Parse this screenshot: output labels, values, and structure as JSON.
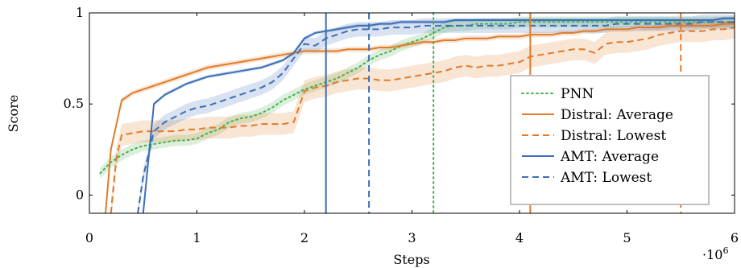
{
  "chart_data": {
    "type": "line",
    "title": "",
    "xlabel": "Steps",
    "ylabel": "Score",
    "x_exponent_label": "·10",
    "x_exponent_power": "6",
    "xlim": [
      0,
      6
    ],
    "ylim": [
      -0.1,
      1.0
    ],
    "xticks": [
      0,
      1,
      2,
      3,
      4,
      5,
      6
    ],
    "xtick_labels": [
      "0",
      "1",
      "2",
      "3",
      "4",
      "5",
      "6"
    ],
    "yticks": [
      0,
      0.5,
      1
    ],
    "ytick_labels": [
      "0",
      "0.5",
      "1"
    ],
    "grid": false,
    "legend_position": "bottom-right",
    "colors": {
      "orange": "#e07b2a",
      "blue": "#3d6fb6",
      "green": "#4caf50"
    },
    "series": [
      {
        "name": "PNN",
        "color": "#4caf50",
        "dash": "dotted",
        "x": [
          0.1,
          0.2,
          0.3,
          0.4,
          0.5,
          0.6,
          0.7,
          0.8,
          0.9,
          1.0,
          1.1,
          1.2,
          1.3,
          1.4,
          1.5,
          1.6,
          1.7,
          1.8,
          1.9,
          2.0,
          2.1,
          2.2,
          2.3,
          2.4,
          2.5,
          2.6,
          2.7,
          2.8,
          2.9,
          3.0,
          3.1,
          3.2,
          3.3,
          3.4,
          3.5,
          3.6,
          3.7,
          3.8,
          3.9,
          4.0,
          4.1,
          4.2,
          4.3,
          4.4,
          4.5,
          4.6,
          4.7,
          4.8,
          4.9,
          5.0,
          5.1,
          5.2,
          5.3,
          5.4,
          5.5,
          5.6,
          5.7,
          5.8,
          5.9,
          6.0
        ],
        "y": [
          0.12,
          0.18,
          0.22,
          0.25,
          0.27,
          0.28,
          0.29,
          0.3,
          0.3,
          0.31,
          0.34,
          0.36,
          0.4,
          0.42,
          0.43,
          0.45,
          0.48,
          0.52,
          0.55,
          0.58,
          0.6,
          0.62,
          0.64,
          0.67,
          0.7,
          0.74,
          0.77,
          0.79,
          0.82,
          0.84,
          0.86,
          0.89,
          0.92,
          0.93,
          0.93,
          0.94,
          0.94,
          0.94,
          0.94,
          0.95,
          0.95,
          0.95,
          0.95,
          0.95,
          0.95,
          0.95,
          0.95,
          0.95,
          0.95,
          0.95,
          0.95,
          0.95,
          0.95,
          0.95,
          0.95,
          0.95,
          0.95,
          0.95,
          0.95,
          0.95
        ],
        "band": 0.03
      },
      {
        "name": "Distral: Average",
        "color": "#e07b2a",
        "dash": "solid",
        "x": [
          0.15,
          0.2,
          0.3,
          0.4,
          0.5,
          0.6,
          0.7,
          0.8,
          0.9,
          1.0,
          1.1,
          1.2,
          1.3,
          1.4,
          1.5,
          1.6,
          1.7,
          1.8,
          1.9,
          2.0,
          2.1,
          2.2,
          2.3,
          2.4,
          2.5,
          2.6,
          2.7,
          2.8,
          2.9,
          3.0,
          3.1,
          3.2,
          3.3,
          3.4,
          3.5,
          3.6,
          3.7,
          3.8,
          3.9,
          4.0,
          4.1,
          4.2,
          4.3,
          4.4,
          4.5,
          4.6,
          4.7,
          4.8,
          4.9,
          5.0,
          5.1,
          5.2,
          5.3,
          5.4,
          5.5,
          5.6,
          5.7,
          5.8,
          5.9,
          6.0
        ],
        "y": [
          -0.1,
          0.25,
          0.52,
          0.56,
          0.58,
          0.6,
          0.62,
          0.64,
          0.66,
          0.68,
          0.7,
          0.71,
          0.72,
          0.73,
          0.74,
          0.75,
          0.76,
          0.77,
          0.78,
          0.79,
          0.79,
          0.79,
          0.79,
          0.8,
          0.8,
          0.8,
          0.81,
          0.81,
          0.82,
          0.83,
          0.84,
          0.84,
          0.85,
          0.85,
          0.86,
          0.86,
          0.86,
          0.87,
          0.87,
          0.87,
          0.88,
          0.88,
          0.88,
          0.89,
          0.89,
          0.9,
          0.9,
          0.91,
          0.91,
          0.91,
          0.92,
          0.92,
          0.92,
          0.93,
          0.93,
          0.93,
          0.93,
          0.93,
          0.94,
          0.94
        ],
        "band": 0.015
      },
      {
        "name": "Distral: Lowest",
        "color": "#e07b2a",
        "dash": "dashed",
        "x": [
          0.2,
          0.25,
          0.3,
          0.4,
          0.5,
          0.6,
          0.7,
          0.8,
          0.9,
          1.0,
          1.1,
          1.2,
          1.3,
          1.4,
          1.5,
          1.6,
          1.7,
          1.8,
          1.9,
          2.0,
          2.1,
          2.2,
          2.3,
          2.4,
          2.5,
          2.6,
          2.7,
          2.8,
          2.9,
          3.0,
          3.1,
          3.2,
          3.3,
          3.4,
          3.5,
          3.6,
          3.7,
          3.8,
          3.9,
          4.0,
          4.1,
          4.2,
          4.3,
          4.4,
          4.5,
          4.6,
          4.7,
          4.8,
          4.9,
          5.0,
          5.1,
          5.2,
          5.3,
          5.4,
          5.5,
          5.6,
          5.7,
          5.8,
          5.9,
          6.0
        ],
        "y": [
          -0.1,
          0.2,
          0.33,
          0.34,
          0.35,
          0.35,
          0.35,
          0.35,
          0.36,
          0.36,
          0.37,
          0.37,
          0.37,
          0.38,
          0.38,
          0.39,
          0.39,
          0.39,
          0.4,
          0.57,
          0.59,
          0.6,
          0.62,
          0.63,
          0.64,
          0.64,
          0.63,
          0.63,
          0.64,
          0.65,
          0.66,
          0.67,
          0.68,
          0.7,
          0.71,
          0.7,
          0.71,
          0.71,
          0.72,
          0.73,
          0.76,
          0.77,
          0.78,
          0.79,
          0.8,
          0.8,
          0.78,
          0.83,
          0.84,
          0.84,
          0.85,
          0.86,
          0.88,
          0.89,
          0.9,
          0.9,
          0.9,
          0.91,
          0.91,
          0.92
        ],
        "band": 0.06
      },
      {
        "name": "AMT: Average",
        "color": "#3d6fb6",
        "dash": "solid",
        "x": [
          0.5,
          0.6,
          0.7,
          0.8,
          0.9,
          1.0,
          1.1,
          1.2,
          1.3,
          1.4,
          1.5,
          1.6,
          1.7,
          1.8,
          1.9,
          2.0,
          2.1,
          2.2,
          2.3,
          2.4,
          2.5,
          2.6,
          2.7,
          2.8,
          2.9,
          3.0,
          3.1,
          3.2,
          3.3,
          3.4,
          3.5,
          3.6,
          3.7,
          3.8,
          3.9,
          4.0,
          4.1,
          4.2,
          4.3,
          4.4,
          4.5,
          4.6,
          4.7,
          4.8,
          4.9,
          5.0,
          5.1,
          5.2,
          5.3,
          5.4,
          5.5,
          5.6,
          5.7,
          5.8,
          5.9,
          6.0
        ],
        "y": [
          -0.1,
          0.5,
          0.55,
          0.58,
          0.61,
          0.63,
          0.65,
          0.66,
          0.67,
          0.68,
          0.69,
          0.7,
          0.72,
          0.74,
          0.78,
          0.86,
          0.89,
          0.9,
          0.91,
          0.92,
          0.93,
          0.93,
          0.94,
          0.94,
          0.95,
          0.95,
          0.95,
          0.95,
          0.95,
          0.96,
          0.96,
          0.96,
          0.96,
          0.96,
          0.96,
          0.96,
          0.96,
          0.96,
          0.96,
          0.96,
          0.96,
          0.96,
          0.96,
          0.96,
          0.96,
          0.96,
          0.96,
          0.96,
          0.96,
          0.96,
          0.96,
          0.96,
          0.96,
          0.96,
          0.97,
          0.97
        ],
        "band": 0.01
      },
      {
        "name": "AMT: Lowest",
        "color": "#3d6fb6",
        "dash": "dashed",
        "x": [
          0.45,
          0.5,
          0.6,
          0.7,
          0.8,
          0.9,
          1.0,
          1.1,
          1.2,
          1.3,
          1.4,
          1.5,
          1.6,
          1.7,
          1.8,
          1.9,
          2.0,
          2.1,
          2.2,
          2.3,
          2.4,
          2.5,
          2.6,
          2.7,
          2.8,
          2.9,
          3.0,
          3.1,
          3.2,
          3.3,
          3.4,
          3.5,
          3.6,
          3.7,
          3.8,
          3.9,
          4.0,
          4.1,
          4.2,
          4.3,
          4.4,
          4.5,
          4.6,
          4.7,
          4.8,
          4.9,
          5.0,
          5.1,
          5.2,
          5.3,
          5.4,
          5.5,
          5.6,
          5.7,
          5.8,
          5.9,
          6.0
        ],
        "y": [
          -0.1,
          0.1,
          0.35,
          0.4,
          0.43,
          0.46,
          0.48,
          0.49,
          0.51,
          0.53,
          0.55,
          0.57,
          0.59,
          0.62,
          0.67,
          0.75,
          0.83,
          0.82,
          0.86,
          0.88,
          0.9,
          0.91,
          0.91,
          0.91,
          0.92,
          0.92,
          0.92,
          0.93,
          0.93,
          0.93,
          0.93,
          0.93,
          0.93,
          0.93,
          0.93,
          0.93,
          0.93,
          0.93,
          0.93,
          0.93,
          0.93,
          0.93,
          0.93,
          0.93,
          0.93,
          0.94,
          0.94,
          0.94,
          0.94,
          0.94,
          0.94,
          0.94,
          0.94,
          0.95,
          0.95,
          0.95,
          0.95
        ],
        "band": 0.04
      }
    ],
    "vertical_lines": [
      {
        "x": 2.2,
        "color": "#3d6fb6",
        "dash": "solid"
      },
      {
        "x": 2.6,
        "color": "#3d6fb6",
        "dash": "dashed"
      },
      {
        "x": 3.2,
        "color": "#4caf50",
        "dash": "dotted"
      },
      {
        "x": 4.1,
        "color": "#e07b2a",
        "dash": "solid"
      },
      {
        "x": 5.5,
        "color": "#e07b2a",
        "dash": "dashed"
      }
    ]
  }
}
